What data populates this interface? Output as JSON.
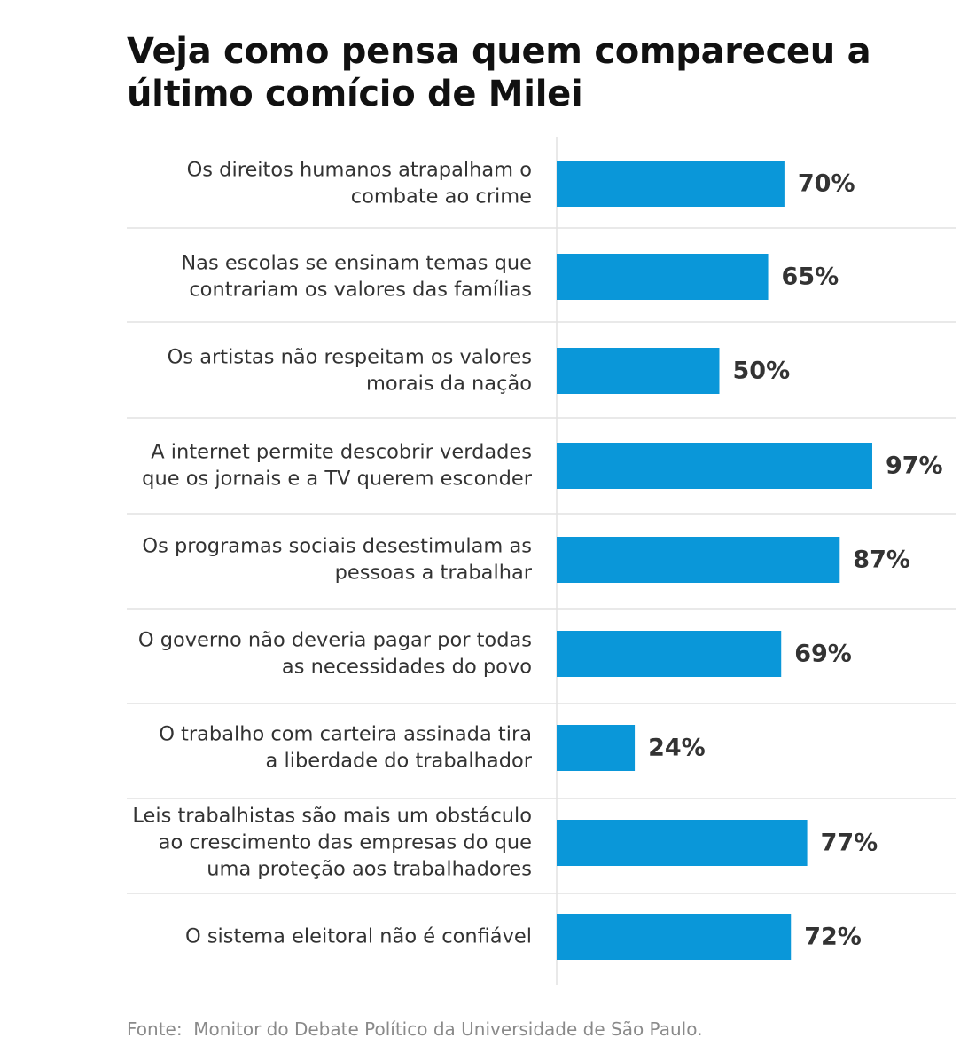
{
  "chart_data": {
    "type": "bar",
    "orientation": "horizontal",
    "title": "Veja como pensa quem compareceu a último comício de Milei",
    "categories": [
      [
        "Os direitos humanos atrapalham o",
        "combate ao crime"
      ],
      [
        "Nas escolas se ensinam temas que",
        "contrariam os valores das famílias"
      ],
      [
        "Os artistas não respeitam os valores",
        "morais da nação"
      ],
      [
        "A internet permite descobrir verdades",
        "que os jornais e a TV querem esconder"
      ],
      [
        "Os programas sociais desestimulam as",
        "pessoas a trabalhar"
      ],
      [
        "O governo não deveria pagar por todas",
        "as necessidades do povo"
      ],
      [
        "O trabalho com carteira assinada tira",
        "a liberdade do trabalhador"
      ],
      [
        "Leis trabalhistas são mais um obstáculo",
        "ao crescimento das empresas do que",
        "uma proteção aos trabalhadores"
      ],
      [
        "O sistema eleitoral não é confiável"
      ]
    ],
    "values": [
      70,
      65,
      50,
      97,
      87,
      69,
      24,
      77,
      72
    ],
    "value_labels": [
      "70%",
      "65%",
      "50%",
      "97%",
      "87%",
      "69%",
      "24%",
      "77%",
      "72%"
    ],
    "unit": "%",
    "xlim": [
      0,
      100
    ],
    "bar_color": "#0a97d9",
    "separator_color": "#e2e2e2"
  },
  "source": "Fonte:  Monitor do Debate Político da Universidade de São Paulo."
}
